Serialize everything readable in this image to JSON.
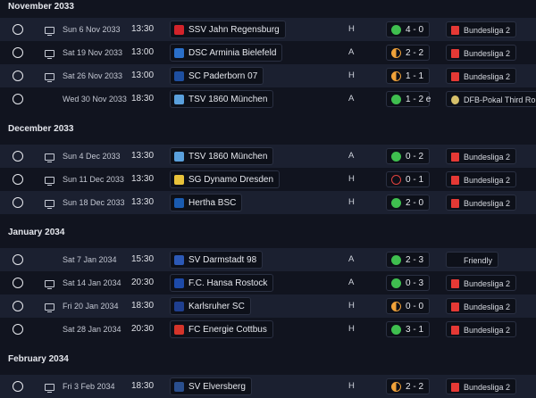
{
  "colors": {
    "win": "#3fbf4f",
    "draw": "#f0a23a",
    "loss": "#e0423e"
  },
  "months": [
    {
      "label": "November 2033",
      "fixtures": [
        {
          "date": "Sun 6 Nov 2033",
          "time": "13:30",
          "tv": true,
          "team": "SSV Jahn Regensburg",
          "crest": "#d3232a",
          "venue": "H",
          "result": "4 - 0",
          "outcome": "win",
          "comp": "Bundesliga 2",
          "comp_icon": "bundesliga-2-icon"
        },
        {
          "date": "Sat 19 Nov 2033",
          "time": "13:00",
          "tv": true,
          "team": "DSC Arminia Bielefeld",
          "crest": "#2a6fc9",
          "venue": "A",
          "result": "2 - 2",
          "outcome": "draw",
          "comp": "Bundesliga 2",
          "comp_icon": "bundesliga-2-icon"
        },
        {
          "date": "Sat 26 Nov 2033",
          "time": "13:00",
          "tv": true,
          "team": "SC Paderborn 07",
          "crest": "#1e4fa0",
          "venue": "H",
          "result": "1 - 1",
          "outcome": "draw",
          "comp": "Bundesliga 2",
          "comp_icon": "bundesliga-2-icon"
        },
        {
          "date": "Wed 30 Nov 2033",
          "time": "18:30",
          "tv": false,
          "team": "TSV 1860 München",
          "crest": "#5aa0dc",
          "venue": "A",
          "result": "1 - 2 e",
          "outcome": "win",
          "comp": "DFB-Pokal Third Round",
          "comp_icon": "dfb-pokal-icon"
        }
      ]
    },
    {
      "label": "December 2033",
      "fixtures": [
        {
          "date": "Sun 4 Dec 2033",
          "time": "13:30",
          "tv": true,
          "team": "TSV 1860 München",
          "crest": "#5aa0dc",
          "venue": "A",
          "result": "0 - 2",
          "outcome": "win",
          "comp": "Bundesliga 2",
          "comp_icon": "bundesliga-2-icon"
        },
        {
          "date": "Sun 11 Dec 2033",
          "time": "13:30",
          "tv": true,
          "team": "SG Dynamo Dresden",
          "crest": "#e8c23a",
          "venue": "H",
          "result": "0 - 1",
          "outcome": "loss",
          "comp": "Bundesliga 2",
          "comp_icon": "bundesliga-2-icon"
        },
        {
          "date": "Sun 18 Dec 2033",
          "time": "13:30",
          "tv": true,
          "team": "Hertha BSC",
          "crest": "#1a5bb0",
          "venue": "H",
          "result": "2 - 0",
          "outcome": "win",
          "comp": "Bundesliga 2",
          "comp_icon": "bundesliga-2-icon"
        }
      ]
    },
    {
      "label": "January 2034",
      "fixtures": [
        {
          "date": "Sat 7 Jan 2034",
          "time": "15:30",
          "tv": false,
          "team": "SV Darmstadt 98",
          "crest": "#2c59b6",
          "venue": "A",
          "result": "2 - 3",
          "outcome": "win",
          "comp": "Friendly",
          "comp_icon": "friendly-icon"
        },
        {
          "date": "Sat 14 Jan 2034",
          "time": "20:30",
          "tv": true,
          "team": "F.C. Hansa Rostock",
          "crest": "#1d4aa8",
          "venue": "A",
          "result": "0 - 3",
          "outcome": "win",
          "comp": "Bundesliga 2",
          "comp_icon": "bundesliga-2-icon"
        },
        {
          "date": "Fri 20 Jan 2034",
          "time": "18:30",
          "tv": true,
          "team": "Karlsruher SC",
          "crest": "#1f3f8f",
          "venue": "H",
          "result": "0 - 0",
          "outcome": "draw",
          "comp": "Bundesliga 2",
          "comp_icon": "bundesliga-2-icon"
        },
        {
          "date": "Sat 28 Jan 2034",
          "time": "20:30",
          "tv": false,
          "team": "FC Energie Cottbus",
          "crest": "#d4342a",
          "venue": "H",
          "result": "3 - 1",
          "outcome": "win",
          "comp": "Bundesliga 2",
          "comp_icon": "bundesliga-2-icon"
        }
      ]
    },
    {
      "label": "February 2034",
      "fixtures": [
        {
          "date": "Fri 3 Feb 2034",
          "time": "18:30",
          "tv": true,
          "team": "SV Elversberg",
          "crest": "#2a4f8e",
          "venue": "H",
          "result": "2 - 2",
          "outcome": "draw",
          "comp": "Bundesliga 2",
          "comp_icon": "bundesliga-2-icon"
        }
      ]
    }
  ]
}
